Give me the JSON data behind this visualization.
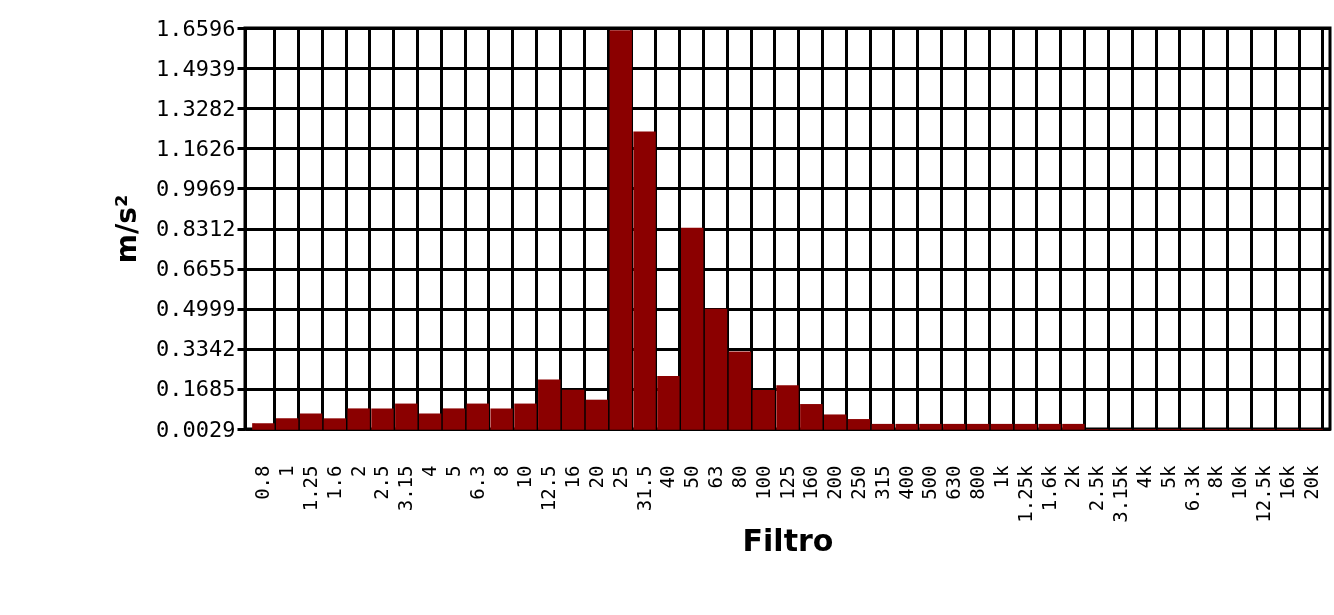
{
  "chart_data": {
    "type": "bar",
    "xlabel": "Filtro",
    "ylabel": "m/s²",
    "categories": [
      "0.8",
      "1",
      "1.25",
      "1.6",
      "2",
      "2.5",
      "3.15",
      "4",
      "5",
      "6.3",
      "8",
      "10",
      "12.5",
      "16",
      "20",
      "25",
      "31.5",
      "40",
      "50",
      "63",
      "80",
      "100",
      "125",
      "160",
      "200",
      "250",
      "315",
      "400",
      "500",
      "630",
      "800",
      "1k",
      "1.25k",
      "1.6k",
      "2k",
      "2.5k",
      "3.15k",
      "4k",
      "5k",
      "6.3k",
      "8k",
      "10k",
      "12.5k",
      "16k",
      "20k"
    ],
    "values": [
      0.027,
      0.047,
      0.067,
      0.047,
      0.088,
      0.088,
      0.108,
      0.067,
      0.088,
      0.108,
      0.088,
      0.108,
      0.207,
      0.165,
      0.124,
      1.65,
      1.232,
      0.222,
      0.834,
      0.5,
      0.323,
      0.164,
      0.184,
      0.106,
      0.063,
      0.044,
      0.024,
      0.024,
      0.024,
      0.024,
      0.024,
      0.024,
      0.024,
      0.024,
      0.024,
      0.0029,
      0.0029,
      0.0029,
      0.0029,
      0.0029,
      0.0029,
      0.0029,
      0.0029,
      0.0029,
      0.0029
    ],
    "color": "#8b0000",
    "ylim": [
      0.0029,
      1.6596
    ],
    "yticks": [
      0.0029,
      0.1685,
      0.3342,
      0.4999,
      0.6655,
      0.8312,
      0.9969,
      1.1626,
      1.3282,
      1.4939,
      1.6596
    ],
    "grid": true
  }
}
